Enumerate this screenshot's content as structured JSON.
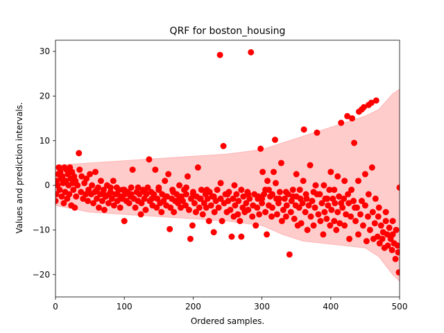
{
  "chart_data": {
    "type": "scatter",
    "title": "QRF for boston_housing",
    "xlabel": "Ordered samples.",
    "ylabel": "Values and prediction intervals.",
    "xlim": [
      0,
      500
    ],
    "ylim": [
      -25,
      32.5
    ],
    "xticks": [
      0,
      100,
      200,
      300,
      400,
      500
    ],
    "yticks": [
      -20,
      -10,
      0,
      10,
      20,
      30
    ],
    "grid": false,
    "colors": {
      "points": "#ff0000",
      "interval_fill": "#ffcccc",
      "interval_edge": "#ffb3b3"
    },
    "interval": {
      "x": [
        0,
        50,
        100,
        150,
        200,
        250,
        300,
        330,
        360,
        390,
        420,
        450,
        470,
        490,
        500
      ],
      "lower": [
        -4.5,
        -6,
        -6.5,
        -7,
        -7.5,
        -8,
        -9,
        -11,
        -12.5,
        -13,
        -13.5,
        -14,
        -16,
        -20,
        -21.5
      ],
      "upper": [
        4.5,
        5,
        5.5,
        6,
        6.5,
        7,
        8,
        9.5,
        11,
        12.5,
        14,
        15.5,
        17,
        20.5,
        21.5
      ]
    },
    "points": [
      [
        0,
        -3.5
      ],
      [
        1,
        -2
      ],
      [
        2,
        1
      ],
      [
        3,
        0
      ],
      [
        4,
        2.5
      ],
      [
        5,
        4
      ],
      [
        6,
        -1
      ],
      [
        7,
        3
      ],
      [
        8,
        1.5
      ],
      [
        9,
        -2.5
      ],
      [
        10,
        2
      ],
      [
        11,
        0.5
      ],
      [
        12,
        -4
      ],
      [
        13,
        4
      ],
      [
        14,
        -1.5
      ],
      [
        15,
        1
      ],
      [
        16,
        3.5
      ],
      [
        17,
        -3
      ],
      [
        18,
        2.5
      ],
      [
        19,
        0
      ],
      [
        20,
        -2
      ],
      [
        21,
        4
      ],
      [
        22,
        1.5
      ],
      [
        23,
        -4.5
      ],
      [
        24,
        3
      ],
      [
        25,
        0.5
      ],
      [
        26,
        -1
      ],
      [
        27,
        2
      ],
      [
        28,
        -5
      ],
      [
        29,
        1
      ],
      [
        30,
        -2.5
      ],
      [
        32,
        0
      ],
      [
        34,
        7.2
      ],
      [
        35,
        3.5
      ],
      [
        37,
        -1.5
      ],
      [
        38,
        2
      ],
      [
        40,
        -3
      ],
      [
        42,
        0.5
      ],
      [
        44,
        -2
      ],
      [
        45,
        1.5
      ],
      [
        47,
        -3.5
      ],
      [
        48,
        -1
      ],
      [
        50,
        2.5
      ],
      [
        52,
        -2
      ],
      [
        53,
        0
      ],
      [
        55,
        -4
      ],
      [
        57,
        -1.5
      ],
      [
        58,
        3
      ],
      [
        60,
        -3
      ],
      [
        62,
        -0.5
      ],
      [
        63,
        -5
      ],
      [
        65,
        -2
      ],
      [
        66,
        1
      ],
      [
        68,
        -3.5
      ],
      [
        70,
        -1
      ],
      [
        71,
        -5.5
      ],
      [
        73,
        -2.5
      ],
      [
        75,
        0
      ],
      [
        77,
        -4
      ],
      [
        78,
        -2
      ],
      [
        80,
        -1.5
      ],
      [
        82,
        -3
      ],
      [
        84,
        1
      ],
      [
        85,
        -4.5
      ],
      [
        87,
        -2
      ],
      [
        89,
        -0.5
      ],
      [
        90,
        -3.5
      ],
      [
        92,
        -1
      ],
      [
        94,
        -5
      ],
      [
        95,
        -2.5
      ],
      [
        97,
        -3
      ],
      [
        98,
        -1
      ],
      [
        100,
        -8
      ],
      [
        101,
        -2
      ],
      [
        103,
        -3.5
      ],
      [
        105,
        -1.5
      ],
      [
        107,
        -4
      ],
      [
        109,
        -2.5
      ],
      [
        110,
        -0.5
      ],
      [
        112,
        3.5
      ],
      [
        114,
        -3
      ],
      [
        116,
        -5
      ],
      [
        118,
        -1.5
      ],
      [
        120,
        -3.5
      ],
      [
        122,
        -2
      ],
      [
        124,
        -6.5
      ],
      [
        125,
        -4
      ],
      [
        127,
        -1
      ],
      [
        129,
        -3
      ],
      [
        131,
        -5.5
      ],
      [
        132,
        -2
      ],
      [
        134,
        -0.5
      ],
      [
        136,
        5.8
      ],
      [
        137,
        -3.5
      ],
      [
        139,
        -1.5
      ],
      [
        141,
        -4.5
      ],
      [
        143,
        -2
      ],
      [
        145,
        3.5
      ],
      [
        147,
        -5
      ],
      [
        148,
        -3
      ],
      [
        150,
        -1
      ],
      [
        152,
        -4
      ],
      [
        154,
        -6
      ],
      [
        155,
        -2
      ],
      [
        157,
        -3.5
      ],
      [
        159,
        1
      ],
      [
        161,
        -4.5
      ],
      [
        162,
        -2.5
      ],
      [
        164,
        2.5
      ],
      [
        166,
        -9.8
      ],
      [
        167,
        -5
      ],
      [
        169,
        -3
      ],
      [
        171,
        -1.5
      ],
      [
        172,
        -6
      ],
      [
        174,
        -3.5
      ],
      [
        176,
        -2
      ],
      [
        178,
        -4
      ],
      [
        180,
        0
      ],
      [
        182,
        -5
      ],
      [
        183,
        -2.5
      ],
      [
        185,
        -3.5
      ],
      [
        187,
        -1
      ],
      [
        189,
        -4.5
      ],
      [
        190,
        -2
      ],
      [
        192,
        2
      ],
      [
        194,
        -5.5
      ],
      [
        196,
        -12
      ],
      [
        197,
        -3
      ],
      [
        199,
        -9
      ],
      [
        200,
        -1.5
      ],
      [
        202,
        -4
      ],
      [
        204,
        -6
      ],
      [
        205,
        -2.5
      ],
      [
        207,
        4
      ],
      [
        209,
        -5
      ],
      [
        211,
        -3
      ],
      [
        212,
        -1
      ],
      [
        214,
        -6.5
      ],
      [
        216,
        -4
      ],
      [
        218,
        -2
      ],
      [
        219,
        -5
      ],
      [
        221,
        -3
      ],
      [
        223,
        -8
      ],
      [
        224,
        -1.5
      ],
      [
        226,
        -4.5
      ],
      [
        228,
        -2.5
      ],
      [
        230,
        -10.5
      ],
      [
        231,
        -6
      ],
      [
        233,
        -3.5
      ],
      [
        235,
        -1
      ],
      [
        237,
        -5
      ],
      [
        239,
        29.2
      ],
      [
        240,
        -3
      ],
      [
        242,
        -8
      ],
      [
        244,
        8.8
      ],
      [
        245,
        -4
      ],
      [
        247,
        -2
      ],
      [
        249,
        -6
      ],
      [
        251,
        -3.5
      ],
      [
        252,
        -1.5
      ],
      [
        254,
        -5.5
      ],
      [
        256,
        -11.5
      ],
      [
        258,
        -3
      ],
      [
        259,
        -7
      ],
      [
        261,
        -4.5
      ],
      [
        263,
        -2
      ],
      [
        265,
        -6.5
      ],
      [
        266,
        -3.5
      ],
      [
        268,
        -8
      ],
      [
        270,
        -11.5
      ],
      [
        272,
        -5
      ],
      [
        273,
        -2.5
      ],
      [
        275,
        -6
      ],
      [
        277,
        -4
      ],
      [
        279,
        -1.5
      ],
      [
        280,
        -5.5
      ],
      [
        282,
        -3
      ],
      [
        284,
        29.8
      ],
      [
        286,
        -7
      ],
      [
        287,
        -4.5
      ],
      [
        289,
        -2
      ],
      [
        291,
        -9
      ],
      [
        293,
        -5
      ],
      [
        294,
        -3
      ],
      [
        296,
        -6.5
      ],
      [
        298,
        8.2
      ],
      [
        300,
        -4
      ],
      [
        301,
        3
      ],
      [
        303,
        -2
      ],
      [
        305,
        -6
      ],
      [
        307,
        -11
      ],
      [
        308,
        1
      ],
      [
        310,
        -4.5
      ],
      [
        312,
        -2.5
      ],
      [
        314,
        -7
      ],
      [
        315,
        -5
      ],
      [
        317,
        3
      ],
      [
        319,
        10.2
      ],
      [
        321,
        -3
      ],
      [
        322,
        -6.5
      ],
      [
        324,
        -4
      ],
      [
        326,
        -1.5
      ],
      [
        328,
        5
      ],
      [
        329,
        -8
      ],
      [
        331,
        -5.5
      ],
      [
        333,
        -3
      ],
      [
        335,
        -7
      ],
      [
        336,
        -4.5
      ],
      [
        338,
        -2
      ],
      [
        340,
        -15.5
      ],
      [
        342,
        -6
      ],
      [
        343,
        -3.5
      ],
      [
        345,
        -1
      ],
      [
        347,
        -7.5
      ],
      [
        349,
        -4.5
      ],
      [
        350,
        -2.5
      ],
      [
        352,
        -9
      ],
      [
        354,
        -5
      ],
      [
        356,
        -3
      ],
      [
        357,
        -8.5
      ],
      [
        359,
        -4
      ],
      [
        361,
        12.5
      ],
      [
        363,
        -6
      ],
      [
        364,
        -2
      ],
      [
        366,
        -10
      ],
      [
        368,
        -4.5
      ],
      [
        370,
        4.5
      ],
      [
        371,
        -7
      ],
      [
        373,
        -3.5
      ],
      [
        375,
        -9
      ],
      [
        377,
        -5
      ],
      [
        378,
        0
      ],
      [
        380,
        11.8
      ],
      [
        382,
        -6.5
      ],
      [
        384,
        -2
      ],
      [
        385,
        -8
      ],
      [
        387,
        -4
      ],
      [
        389,
        -11
      ],
      [
        391,
        -6
      ],
      [
        392,
        -3
      ],
      [
        394,
        -7.5
      ],
      [
        396,
        -4.5
      ],
      [
        398,
        -1
      ],
      [
        399,
        -9
      ],
      [
        401,
        -5.5
      ],
      [
        403,
        -3
      ],
      [
        405,
        -8
      ],
      [
        406,
        -4
      ],
      [
        408,
        -10
      ],
      [
        410,
        -6
      ],
      [
        412,
        -2.5
      ],
      [
        413,
        -8.5
      ],
      [
        415,
        14
      ],
      [
        417,
        -5
      ],
      [
        419,
        -3
      ],
      [
        420,
        -9
      ],
      [
        422,
        -6.5
      ],
      [
        424,
        15.5
      ],
      [
        426,
        -4
      ],
      [
        427,
        -12
      ],
      [
        429,
        -7
      ],
      [
        431,
        15
      ],
      [
        433,
        -3.5
      ],
      [
        434,
        9.5
      ],
      [
        436,
        -8
      ],
      [
        438,
        -5
      ],
      [
        440,
        -11
      ],
      [
        441,
        16.5
      ],
      [
        443,
        -6.5
      ],
      [
        445,
        17
      ],
      [
        447,
        -9
      ],
      [
        448,
        17.5
      ],
      [
        450,
        -4.5
      ],
      [
        452,
        -12.5
      ],
      [
        454,
        -7
      ],
      [
        455,
        18
      ],
      [
        457,
        -10
      ],
      [
        459,
        18.5
      ],
      [
        461,
        -6
      ],
      [
        462,
        -12
      ],
      [
        464,
        -8.5
      ],
      [
        466,
        19
      ],
      [
        468,
        -11.5
      ],
      [
        469,
        -7
      ],
      [
        471,
        -13
      ],
      [
        473,
        -9
      ],
      [
        475,
        -12
      ],
      [
        476,
        -10.5
      ],
      [
        478,
        -14
      ],
      [
        480,
        -8
      ],
      [
        482,
        -11
      ],
      [
        483,
        -13.5
      ],
      [
        485,
        -9.5
      ],
      [
        487,
        -12
      ],
      [
        489,
        -14.5
      ],
      [
        490,
        -11
      ],
      [
        492,
        -13
      ],
      [
        494,
        -16.5
      ],
      [
        495,
        -10
      ],
      [
        497,
        -13.5
      ],
      [
        498,
        -15
      ],
      [
        499,
        -19.5
      ],
      [
        500,
        -0.5
      ],
      [
        350,
        2.5
      ],
      [
        360,
        1
      ],
      [
        400,
        3
      ],
      [
        410,
        2
      ],
      [
        420,
        1
      ],
      [
        430,
        -1
      ],
      [
        440,
        1
      ],
      [
        380,
        -2
      ],
      [
        390,
        0
      ],
      [
        300,
        -3
      ],
      [
        310,
        -1
      ],
      [
        320,
        0.5
      ],
      [
        280,
        -2
      ],
      [
        270,
        -1
      ],
      [
        260,
        0
      ],
      [
        250,
        -2
      ],
      [
        240,
        0.5
      ],
      [
        230,
        -2.5
      ],
      [
        220,
        -1
      ],
      [
        210,
        -3
      ],
      [
        200,
        -2
      ],
      [
        190,
        -0.5
      ],
      [
        180,
        -3
      ],
      [
        170,
        -1
      ],
      [
        160,
        -2.5
      ],
      [
        150,
        -0.5
      ],
      [
        140,
        -3
      ],
      [
        130,
        -1.5
      ],
      [
        120,
        -0.5
      ],
      [
        110,
        -2
      ],
      [
        100,
        -1
      ],
      [
        90,
        -2
      ],
      [
        80,
        -0.5
      ],
      [
        70,
        -2
      ],
      [
        60,
        -1
      ],
      [
        450,
        2.5
      ],
      [
        460,
        4
      ],
      [
        470,
        -5
      ],
      [
        480,
        -6
      ],
      [
        490,
        -8
      ],
      [
        465,
        -3
      ],
      [
        455,
        -2
      ],
      [
        445,
        -3.5
      ],
      [
        435,
        -5
      ],
      [
        425,
        -2
      ],
      [
        415,
        -4
      ],
      [
        405,
        -1
      ],
      [
        395,
        -3
      ],
      [
        375,
        -1.5
      ],
      [
        365,
        -3
      ],
      [
        355,
        -1
      ],
      [
        345,
        -2.5
      ],
      [
        335,
        -1.5
      ],
      [
        325,
        -3
      ],
      [
        315,
        -2
      ],
      [
        305,
        -1
      ],
      [
        295,
        -2.5
      ]
    ]
  }
}
